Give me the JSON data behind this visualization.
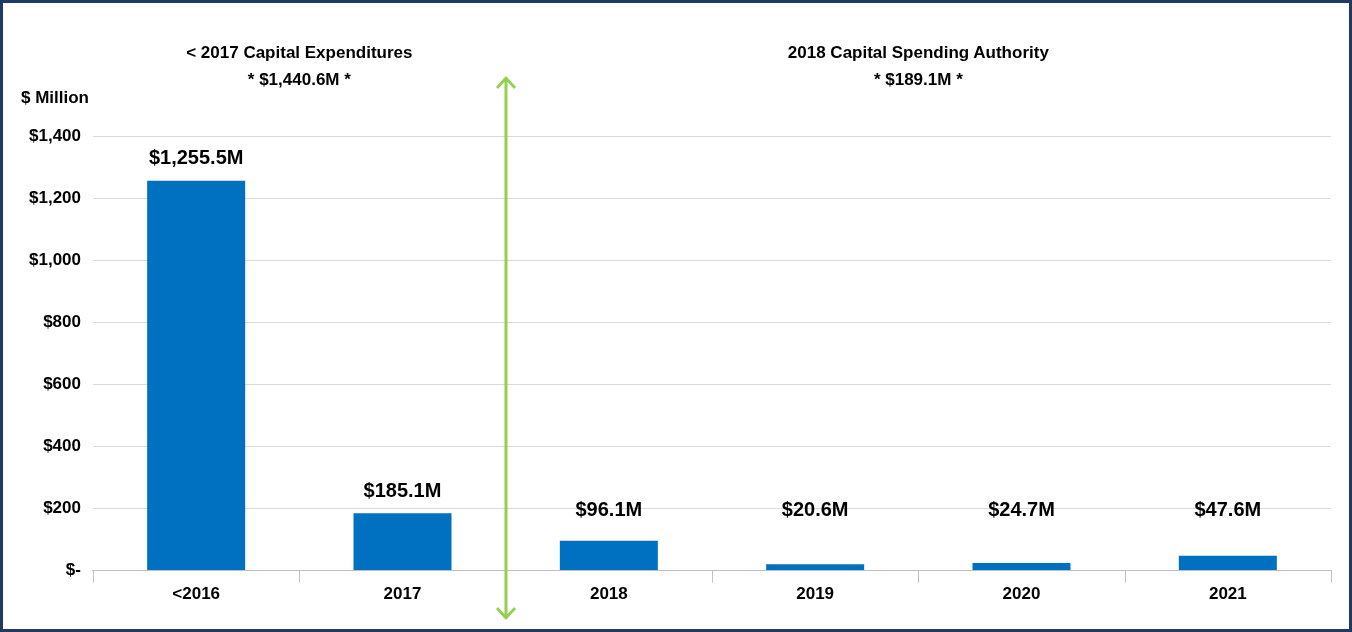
{
  "chart_data": {
    "type": "bar",
    "ylabel": "$ Million",
    "categories": [
      "<2016",
      "2017",
      "2018",
      "2019",
      "2020",
      "2021"
    ],
    "values": [
      1255.5,
      185.1,
      96.1,
      20.6,
      24.7,
      47.6
    ],
    "value_labels": [
      "$1,255.5M",
      "$185.1M",
      "$96.1M",
      "$20.6M",
      "$24.7M",
      "$47.6M"
    ],
    "color": "#0070c0",
    "ylim": [
      0,
      1400
    ],
    "yticks": [
      {
        "value": 0,
        "label": "$-"
      },
      {
        "value": 200,
        "label": "$200"
      },
      {
        "value": 400,
        "label": "$400"
      },
      {
        "value": 600,
        "label": "$600"
      },
      {
        "value": 800,
        "label": "$800"
      },
      {
        "value": 1000,
        "label": "$1,000"
      },
      {
        "value": 1200,
        "label": "$1,200"
      },
      {
        "value": 1400,
        "label": "$1,400"
      }
    ],
    "grid": "y",
    "annotations": [
      "< 2017 Capital Expenditures\n* $1,440.6M *",
      "2018 Capital Spending Authority\n* $189.1M *"
    ]
  }
}
